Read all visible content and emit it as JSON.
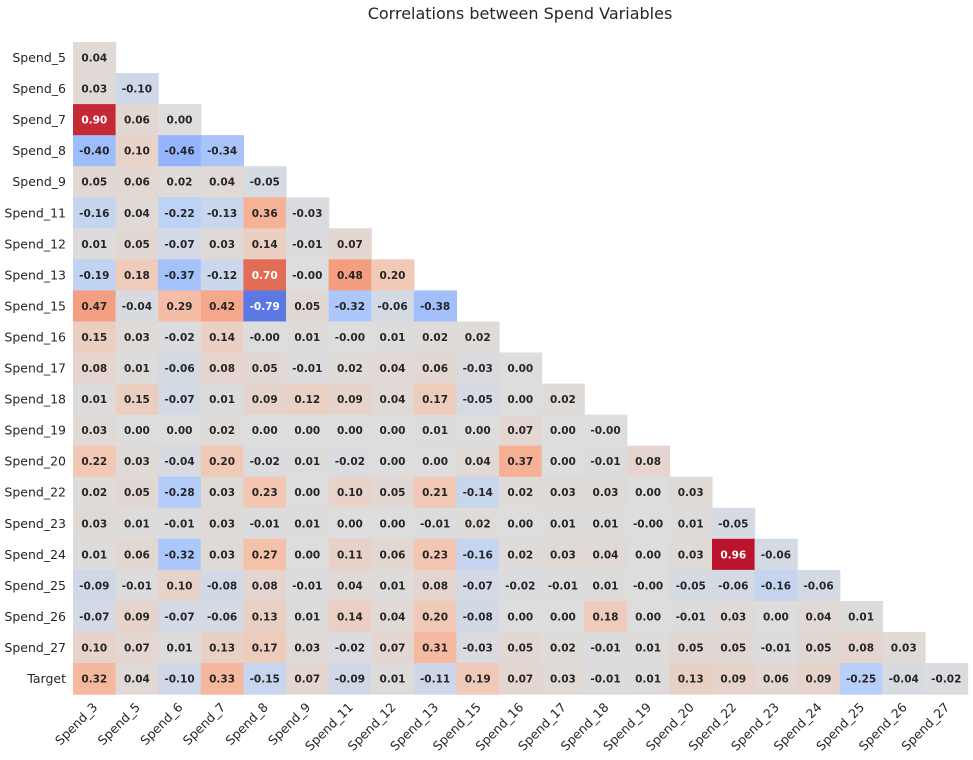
{
  "chart_data": {
    "type": "heatmap",
    "title": "Correlations between Spend Variables",
    "colormap": "coolwarm",
    "vmin": -1,
    "vmax": 1,
    "mask": "upper triangle (lower-triangular display)",
    "colorbar": false,
    "x_labels": [
      "Spend_3",
      "Spend_5",
      "Spend_6",
      "Spend_7",
      "Spend_8",
      "Spend_9",
      "Spend_11",
      "Spend_12",
      "Spend_13",
      "Spend_15",
      "Spend_16",
      "Spend_17",
      "Spend_18",
      "Spend_19",
      "Spend_20",
      "Spend_22",
      "Spend_23",
      "Spend_24",
      "Spend_25",
      "Spend_26",
      "Spend_27"
    ],
    "y_labels": [
      "Spend_5",
      "Spend_6",
      "Spend_7",
      "Spend_8",
      "Spend_9",
      "Spend_11",
      "Spend_12",
      "Spend_13",
      "Spend_15",
      "Spend_16",
      "Spend_17",
      "Spend_18",
      "Spend_19",
      "Spend_20",
      "Spend_22",
      "Spend_23",
      "Spend_24",
      "Spend_25",
      "Spend_26",
      "Spend_27",
      "Target"
    ],
    "rows": [
      [
        "0.04"
      ],
      [
        "0.03",
        "-0.10"
      ],
      [
        "0.90",
        "0.06",
        "0.00"
      ],
      [
        "-0.40",
        "0.10",
        "-0.46",
        "-0.34"
      ],
      [
        "0.05",
        "0.06",
        "0.02",
        "0.04",
        "-0.05"
      ],
      [
        "-0.16",
        "0.04",
        "-0.22",
        "-0.13",
        "0.36",
        "-0.03"
      ],
      [
        "0.01",
        "0.05",
        "-0.07",
        "0.03",
        "0.14",
        "-0.01",
        "0.07"
      ],
      [
        "-0.19",
        "0.18",
        "-0.37",
        "-0.12",
        "0.70",
        "-0.00",
        "0.48",
        "0.20"
      ],
      [
        "0.47",
        "-0.04",
        "0.29",
        "0.42",
        "-0.79",
        "0.05",
        "-0.32",
        "-0.06",
        "-0.38"
      ],
      [
        "0.15",
        "0.03",
        "-0.02",
        "0.14",
        "-0.00",
        "0.01",
        "-0.00",
        "0.01",
        "0.02",
        "0.02"
      ],
      [
        "0.08",
        "0.01",
        "-0.06",
        "0.08",
        "0.05",
        "-0.01",
        "0.02",
        "0.04",
        "0.06",
        "-0.03",
        "0.00"
      ],
      [
        "0.01",
        "0.15",
        "-0.07",
        "0.01",
        "0.09",
        "0.12",
        "0.09",
        "0.04",
        "0.17",
        "-0.05",
        "0.00",
        "0.02"
      ],
      [
        "0.03",
        "0.00",
        "0.00",
        "0.02",
        "0.00",
        "0.00",
        "0.00",
        "0.00",
        "0.01",
        "0.00",
        "0.07",
        "0.00",
        "-0.00"
      ],
      [
        "0.22",
        "0.03",
        "-0.04",
        "0.20",
        "-0.02",
        "0.01",
        "-0.02",
        "0.00",
        "0.00",
        "0.04",
        "0.37",
        "0.00",
        "-0.01",
        "0.08"
      ],
      [
        "0.02",
        "0.05",
        "-0.28",
        "0.03",
        "0.23",
        "0.00",
        "0.10",
        "0.05",
        "0.21",
        "-0.14",
        "0.02",
        "0.03",
        "0.03",
        "0.00",
        "0.03"
      ],
      [
        "0.03",
        "0.01",
        "-0.01",
        "0.03",
        "-0.01",
        "0.01",
        "0.00",
        "0.00",
        "-0.01",
        "0.02",
        "0.00",
        "0.01",
        "0.01",
        "-0.00",
        "0.01",
        "-0.05"
      ],
      [
        "0.01",
        "0.06",
        "-0.32",
        "0.03",
        "0.27",
        "0.00",
        "0.11",
        "0.06",
        "0.23",
        "-0.16",
        "0.02",
        "0.03",
        "0.04",
        "0.00",
        "0.03",
        "0.96",
        "-0.06"
      ],
      [
        "-0.09",
        "-0.01",
        "0.10",
        "-0.08",
        "0.08",
        "-0.01",
        "0.04",
        "0.01",
        "0.08",
        "-0.07",
        "-0.02",
        "-0.01",
        "0.01",
        "-0.00",
        "-0.05",
        "-0.06",
        "-0.16",
        "-0.06"
      ],
      [
        "-0.07",
        "0.09",
        "-0.07",
        "-0.06",
        "0.13",
        "0.01",
        "0.14",
        "0.04",
        "0.20",
        "-0.08",
        "0.00",
        "0.00",
        "0.18",
        "0.00",
        "-0.01",
        "0.03",
        "0.00",
        "0.04",
        "0.01"
      ],
      [
        "0.10",
        "0.07",
        "0.01",
        "0.13",
        "0.17",
        "0.03",
        "-0.02",
        "0.07",
        "0.31",
        "-0.03",
        "0.05",
        "0.02",
        "-0.01",
        "0.01",
        "0.05",
        "0.05",
        "-0.01",
        "0.05",
        "0.08",
        "0.03"
      ],
      [
        "0.32",
        "0.04",
        "-0.10",
        "0.33",
        "-0.15",
        "0.07",
        "-0.09",
        "0.01",
        "-0.11",
        "0.19",
        "0.07",
        "0.03",
        "-0.01",
        "0.01",
        "0.13",
        "0.09",
        "0.06",
        "0.09",
        "-0.25",
        "-0.04",
        "-0.02"
      ]
    ]
  }
}
